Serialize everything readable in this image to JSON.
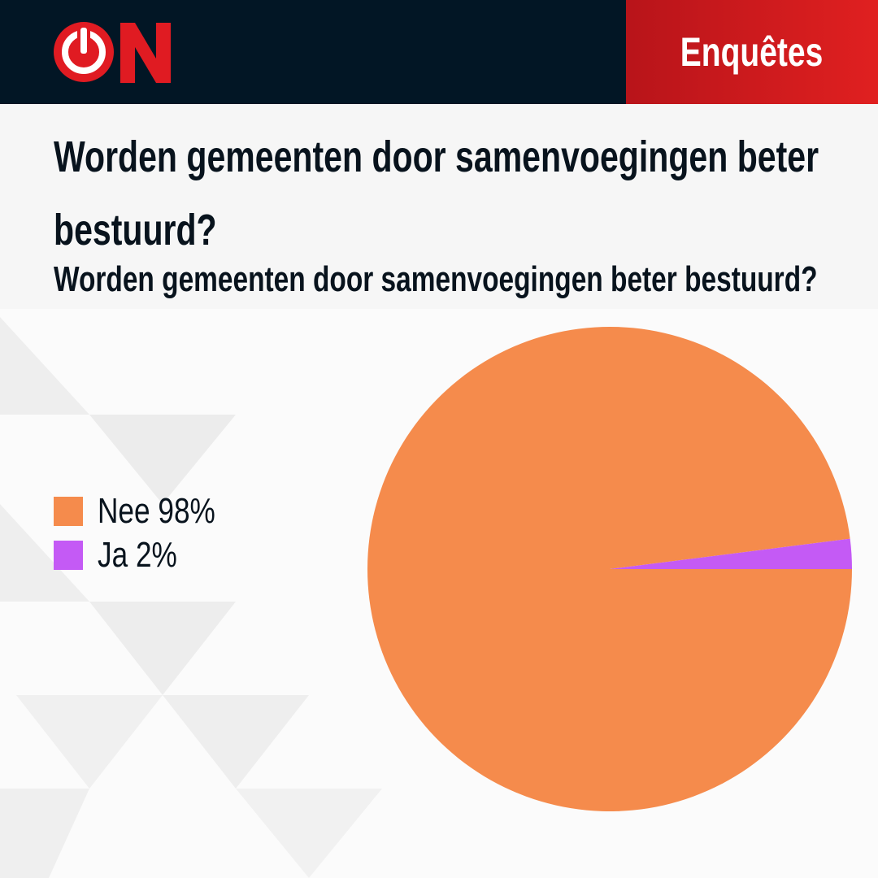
{
  "header": {
    "label": "Enquêtes"
  },
  "chart_data": {
    "type": "pie",
    "title": "Worden gemeenten door samenvoegingen beter bestuurd?",
    "subtitle": "Worden gemeenten door samenvoegingen beter bestuurd?",
    "categories": [
      "Nee",
      "Ja"
    ],
    "values": [
      98,
      2
    ],
    "value_labels": [
      "98%",
      "2%"
    ],
    "colors": [
      "#f58b4c",
      "#c45af5"
    ]
  }
}
